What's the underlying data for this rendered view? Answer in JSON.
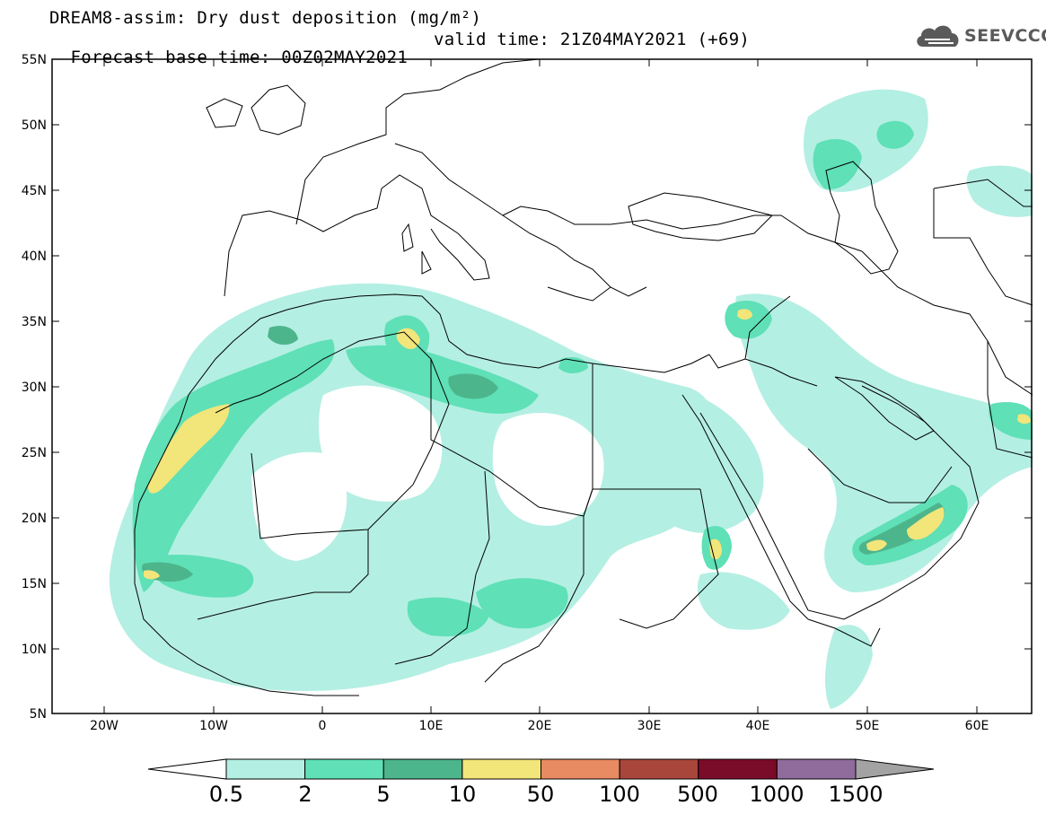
{
  "title": {
    "line1": "DREAM8-assim: Dry dust deposition (mg/m²)",
    "line2_left": "Forecast base time: 00Z02MAY2021",
    "line2_right": "valid time: 21Z04MAY2021 (+69)"
  },
  "logo": {
    "text": "SEEVCCC",
    "icon": "cloud-icon"
  },
  "axes": {
    "lat_labels": [
      "55N",
      "50N",
      "45N",
      "40N",
      "35N",
      "30N",
      "25N",
      "20N",
      "15N",
      "10N",
      "5N"
    ],
    "lon_labels": [
      "20W",
      "10W",
      "0",
      "10E",
      "20E",
      "30E",
      "40E",
      "50E",
      "60E"
    ]
  },
  "colorbar": {
    "labels": [
      "0.5",
      "2",
      "5",
      "10",
      "50",
      "100",
      "500",
      "1000",
      "1500"
    ],
    "colors": [
      "#b4efe3",
      "#5fe0b6",
      "#4db58c",
      "#f2e57a",
      "#e88a62",
      "#a8463c",
      "#7a0b29",
      "#8f6c9c",
      "#a3a3a3"
    ],
    "left_arrow_color": "#ffffff",
    "right_arrow_color": "#a3a3a3"
  },
  "map_colors": {
    "land_outline": "#000000",
    "background": "#ffffff"
  }
}
